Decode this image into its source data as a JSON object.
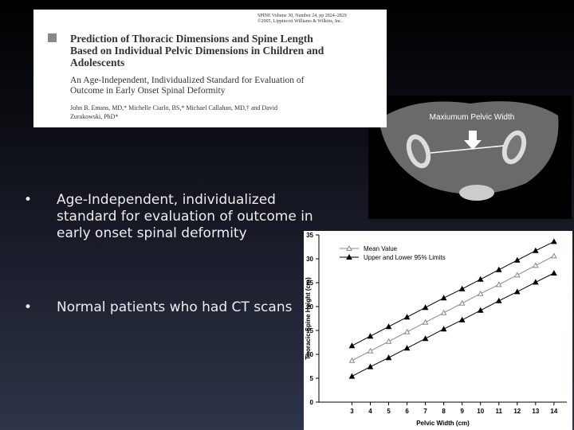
{
  "paper": {
    "journal": "SPINE Volume 30, Number 24, pp 2824–2829",
    "copyright": "©2005, Lippincott Williams & Wilkins, Inc.",
    "title": "Prediction of Thoracic Dimensions and Spine Length Based on Individual Pelvic Dimensions in Children and Adolescents",
    "subtitle": "An Age-Independent, Individualized Standard for Evaluation of Outcome in Early Onset Spinal Deformity",
    "authors": "John B. Emans, MD,* Michelle Ciarlo, BS,* Michael Callahan, MD,† and David Zurakowski, PhD*"
  },
  "ct_image": {
    "label": "Maxiumum Pelvic Width"
  },
  "bullets": [
    "Age-Independent, individualized standard for evaluation of outcome in early onset spinal deformity",
    "Normal patients who had CT scans"
  ],
  "chart_data": {
    "type": "line",
    "xlabel": "Pelvic Width (cm)",
    "ylabel": "Thoracic Spine Height (cm)",
    "x": [
      3,
      4,
      5,
      6,
      7,
      8,
      9,
      10,
      11,
      12,
      13,
      14
    ],
    "series": [
      {
        "name": "Mean Value",
        "color": "#888888",
        "marker": "open",
        "values": [
          8.7,
          10.7,
          12.7,
          14.7,
          16.7,
          18.7,
          20.7,
          22.7,
          24.6,
          26.6,
          28.6,
          30.6
        ]
      },
      {
        "name": "Upper and Lower 95% Limits",
        "color": "#000000",
        "marker": "filled",
        "values": [
          11.8,
          13.8,
          15.8,
          17.8,
          19.8,
          21.8,
          23.7,
          25.7,
          27.7,
          29.7,
          31.7,
          33.6
        ]
      },
      {
        "color": "#000000",
        "marker": "filled",
        "values": [
          5.4,
          7.4,
          9.3,
          11.3,
          13.3,
          15.3,
          17.2,
          19.2,
          21.2,
          23.1,
          25.1,
          27.0
        ]
      }
    ],
    "xlim": [
      1.2,
      14.7
    ],
    "ylim": [
      0,
      35
    ],
    "xticks": [
      3,
      4,
      5,
      6,
      7,
      8,
      9,
      10,
      11,
      12,
      13,
      14
    ],
    "yticks": [
      0,
      5,
      10,
      15,
      20,
      25,
      30,
      35
    ]
  }
}
